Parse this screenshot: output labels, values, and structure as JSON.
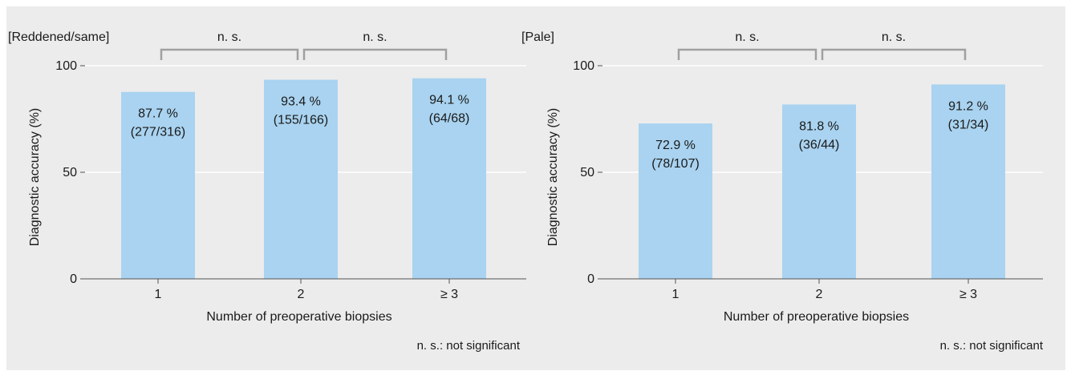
{
  "chart_data": [
    {
      "type": "bar",
      "title": "[Reddened/same]",
      "xlabel": "Number of preoperative biopsies",
      "ylabel": "Diagnostic accuracy (%)",
      "ylim": [
        0,
        100
      ],
      "yticks": [
        0,
        50,
        100
      ],
      "grid": true,
      "bar_color": "#a9d3f0",
      "categories": [
        "1",
        "2",
        "≥ 3"
      ],
      "values": [
        87.7,
        93.4,
        94.1
      ],
      "data_labels": [
        {
          "percent": "87.7 %",
          "fraction": "(277/316)"
        },
        {
          "percent": "93.4 %",
          "fraction": "(155/166)"
        },
        {
          "percent": "94.1 %",
          "fraction": "(64/68)"
        }
      ],
      "comparisons": [
        {
          "from": 0,
          "to": 1,
          "label": "n. s."
        },
        {
          "from": 1,
          "to": 2,
          "label": "n. s."
        }
      ],
      "footnote": "n. s.: not significant"
    },
    {
      "type": "bar",
      "title": "[Pale]",
      "xlabel": "Number of preoperative biopsies",
      "ylabel": "Diagnostic accuracy (%)",
      "ylim": [
        0,
        100
      ],
      "yticks": [
        0,
        50,
        100
      ],
      "grid": true,
      "bar_color": "#a9d3f0",
      "categories": [
        "1",
        "2",
        "≥ 3"
      ],
      "values": [
        72.9,
        81.8,
        91.2
      ],
      "data_labels": [
        {
          "percent": "72.9 %",
          "fraction": "(78/107)"
        },
        {
          "percent": "81.8 %",
          "fraction": "(36/44)"
        },
        {
          "percent": "91.2 %",
          "fraction": "(31/34)"
        }
      ],
      "comparisons": [
        {
          "from": 0,
          "to": 1,
          "label": "n. s."
        },
        {
          "from": 1,
          "to": 2,
          "label": "n. s."
        }
      ],
      "footnote": "n. s.: not significant"
    }
  ]
}
